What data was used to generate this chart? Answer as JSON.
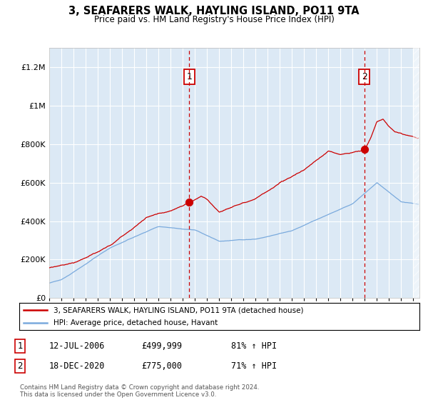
{
  "title": "3, SEAFARERS WALK, HAYLING ISLAND, PO11 9TA",
  "subtitle": "Price paid vs. HM Land Registry's House Price Index (HPI)",
  "bg_color": "#ffffff",
  "plot_bg_color": "#dce9f5",
  "red_line_color": "#cc0000",
  "blue_line_color": "#7aaadd",
  "grid_color": "#ffffff",
  "ylim": [
    0,
    1300000
  ],
  "yticks": [
    0,
    200000,
    400000,
    600000,
    800000,
    1000000,
    1200000
  ],
  "ytick_labels": [
    "£0",
    "£200K",
    "£400K",
    "£600K",
    "£800K",
    "£1M",
    "£1.2M"
  ],
  "transaction1": {
    "date_num": 2006.53,
    "price": 499999,
    "label": "1"
  },
  "transaction2": {
    "date_num": 2020.96,
    "price": 775000,
    "label": "2"
  },
  "annotation1": {
    "text": "12-JUL-2006",
    "price": "£499,999",
    "hpi": "81% ↑ HPI"
  },
  "annotation2": {
    "text": "18-DEC-2020",
    "price": "£775,000",
    "hpi": "71% ↑ HPI"
  },
  "legend_label_red": "3, SEAFARERS WALK, HAYLING ISLAND, PO11 9TA (detached house)",
  "legend_label_blue": "HPI: Average price, detached house, Havant",
  "footer": "Contains HM Land Registry data © Crown copyright and database right 2024.\nThis data is licensed under the Open Government Licence v3.0.",
  "xmin": 1995.0,
  "xmax": 2025.5
}
